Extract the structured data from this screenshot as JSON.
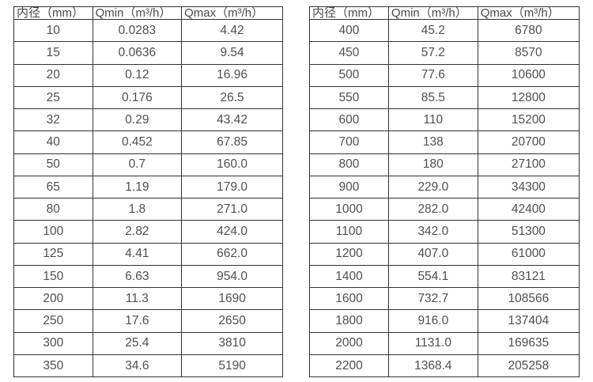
{
  "colors": {
    "background": "#ffffff",
    "border": "#333333",
    "text": "#4f4f4f"
  },
  "tables": [
    {
      "id": "flow-rate-table-small-diameters",
      "headers": [
        "内径（mm）",
        "Qmin（m³/h）",
        "Qmax（m³/h）"
      ],
      "rows": [
        [
          "10",
          "0.0283",
          "4.42"
        ],
        [
          "15",
          "0.0636",
          "9.54"
        ],
        [
          "20",
          "0.12",
          "16.96"
        ],
        [
          "25",
          "0.176",
          "26.5"
        ],
        [
          "32",
          "0.29",
          "43.42"
        ],
        [
          "40",
          "0.452",
          "67.85"
        ],
        [
          "50",
          "0.7",
          "160.0"
        ],
        [
          "65",
          "1.19",
          "179.0"
        ],
        [
          "80",
          "1.8",
          "271.0"
        ],
        [
          "100",
          "2.82",
          "424.0"
        ],
        [
          "125",
          "4.41",
          "662.0"
        ],
        [
          "150",
          "6.63",
          "954.0"
        ],
        [
          "200",
          "11.3",
          "1690"
        ],
        [
          "250",
          "17.6",
          "2650"
        ],
        [
          "300",
          "25.4",
          "3810"
        ],
        [
          "350",
          "34.6",
          "5190"
        ]
      ]
    },
    {
      "id": "flow-rate-table-large-diameters",
      "headers": [
        "内径（mm）",
        "Qmin（m³/h）",
        "Qmax（m³/h）"
      ],
      "rows": [
        [
          "400",
          "45.2",
          "6780"
        ],
        [
          "450",
          "57.2",
          "8570"
        ],
        [
          "500",
          "77.6",
          "10600"
        ],
        [
          "550",
          "85.5",
          "12800"
        ],
        [
          "600",
          "110",
          "15200"
        ],
        [
          "700",
          "138",
          "20700"
        ],
        [
          "800",
          "180",
          "27100"
        ],
        [
          "900",
          "229.0",
          "34300"
        ],
        [
          "1000",
          "282.0",
          "42400"
        ],
        [
          "1100",
          "342.0",
          "51300"
        ],
        [
          "1200",
          "407.0",
          "61000"
        ],
        [
          "1400",
          "554.1",
          "83121"
        ],
        [
          "1600",
          "732.7",
          "108566"
        ],
        [
          "1800",
          "916.0",
          "137404"
        ],
        [
          "2000",
          "1131.0",
          "169635"
        ],
        [
          "2200",
          "1368.4",
          "205258"
        ]
      ]
    }
  ]
}
